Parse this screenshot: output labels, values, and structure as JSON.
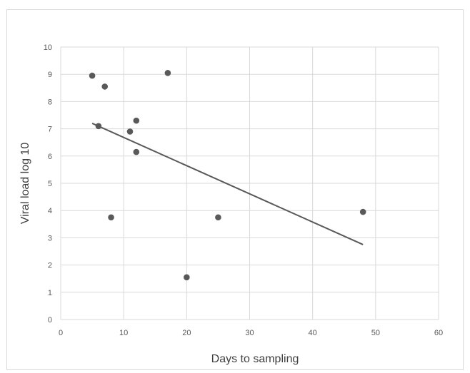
{
  "chart_data": {
    "type": "scatter",
    "xlabel": "Days to sampling",
    "ylabel": "Viral load log 10",
    "xlim": [
      0,
      60
    ],
    "ylim": [
      0,
      10
    ],
    "x_ticks": [
      "0",
      "10",
      "20",
      "30",
      "40",
      "50",
      "60"
    ],
    "y_ticks": [
      "0",
      "1",
      "2",
      "3",
      "4",
      "5",
      "6",
      "7",
      "8",
      "9",
      "10"
    ],
    "grid": true,
    "legend": "none",
    "series": [
      {
        "x": [
          5,
          6,
          7,
          8,
          11,
          12,
          12,
          17,
          20,
          25,
          48
        ],
        "y": [
          8.95,
          7.1,
          8.55,
          3.75,
          6.9,
          7.3,
          6.15,
          9.05,
          1.55,
          3.75,
          3.95
        ]
      }
    ],
    "trendline": {
      "type": "linear",
      "x": [
        5,
        48
      ],
      "y": [
        7.2,
        2.75
      ]
    },
    "colors": {
      "marker": "#595959",
      "trendline": "#595959",
      "grid": "#d9d9d9"
    }
  }
}
